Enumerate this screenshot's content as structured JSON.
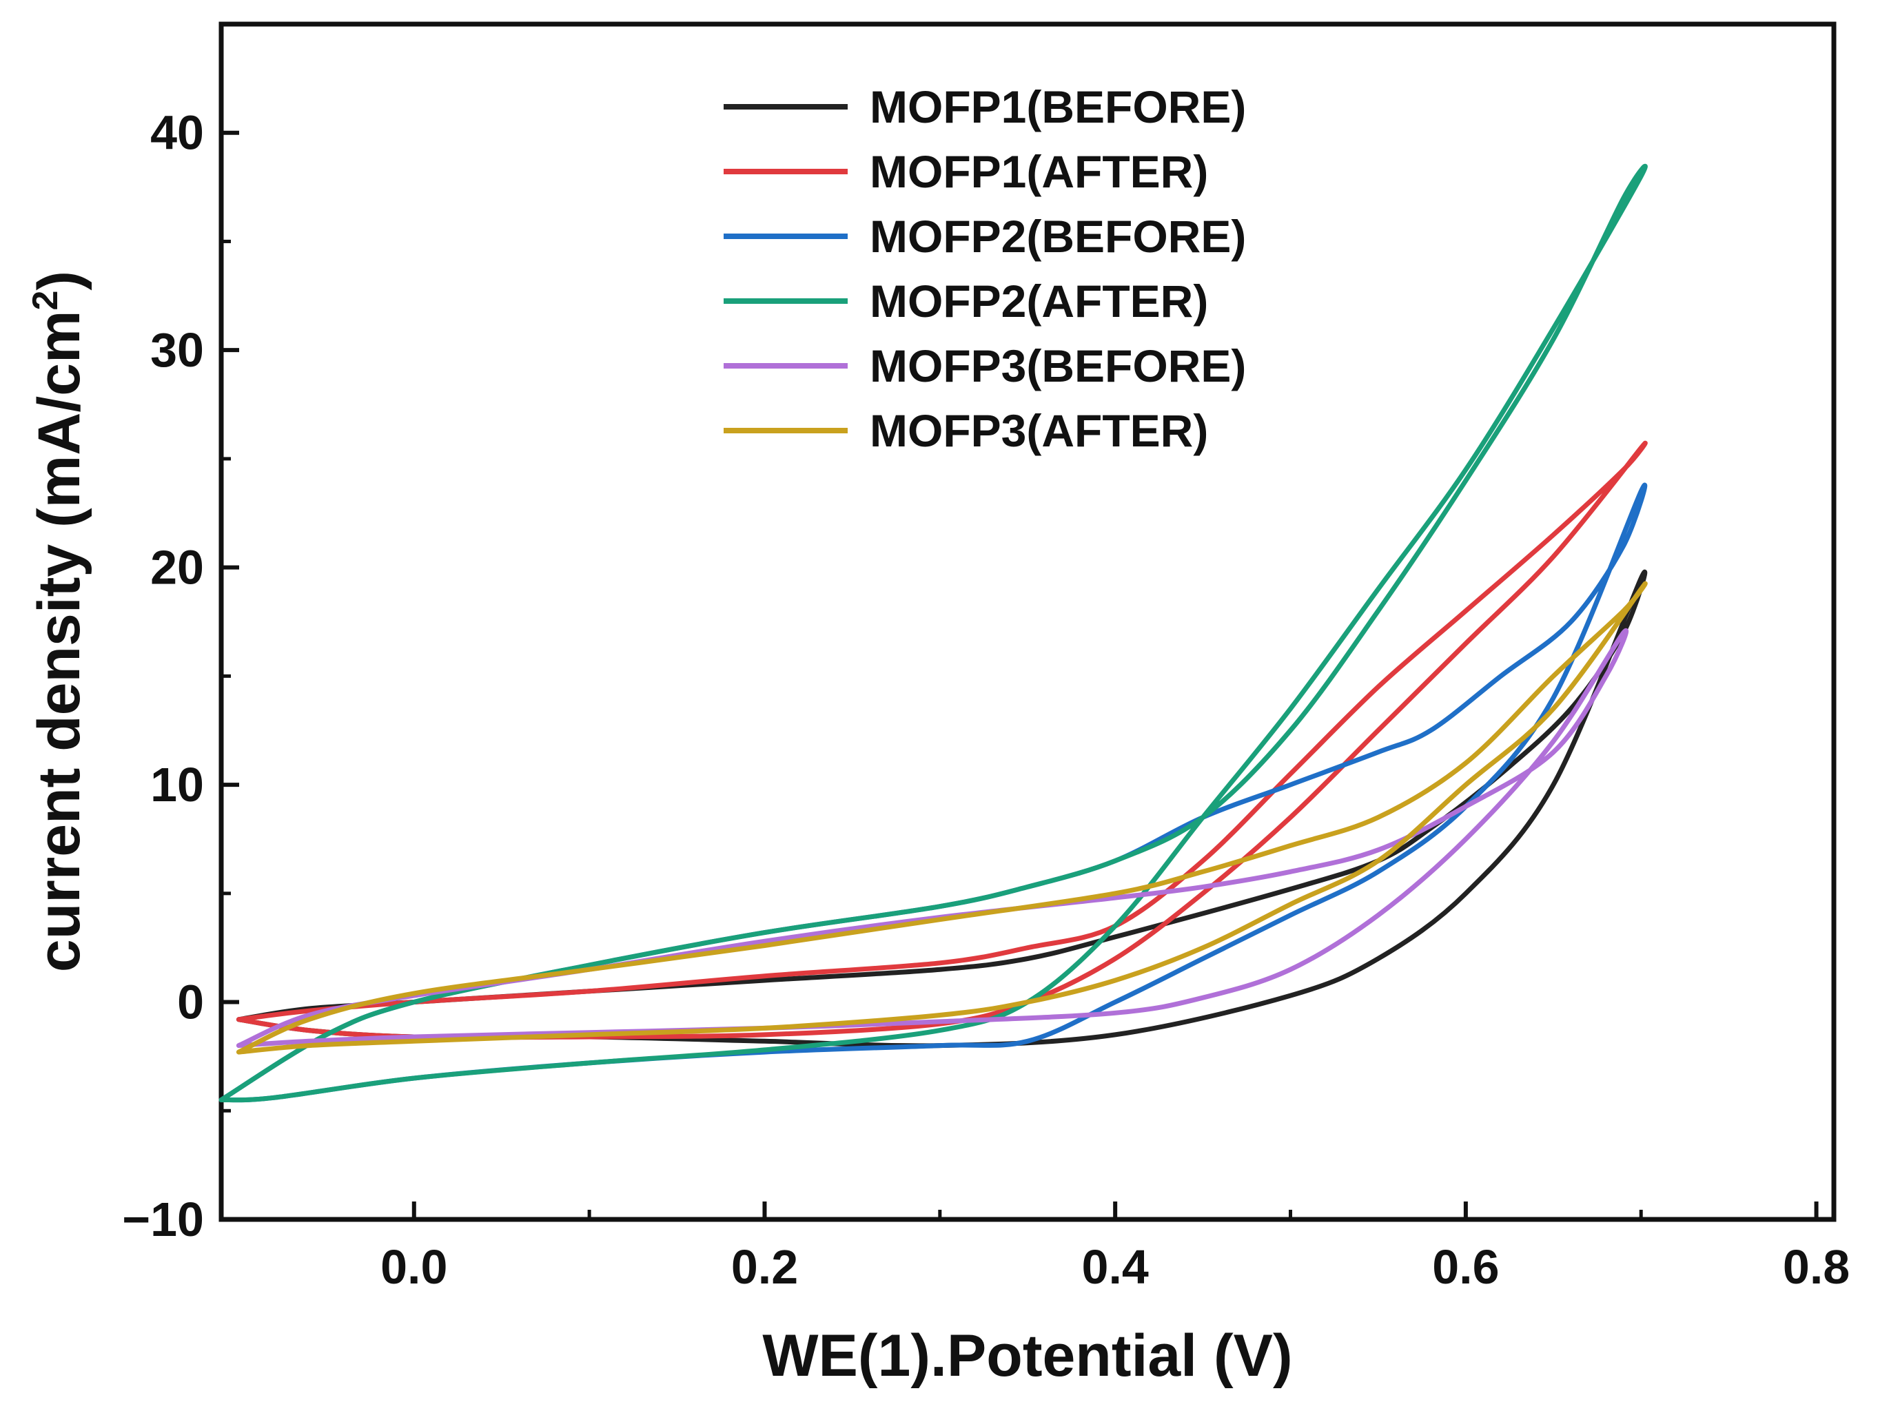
{
  "chart_data": {
    "type": "line",
    "title": "",
    "xlabel": "WE(1).Potential (V)",
    "ylabel_main": "current density (mA/cm",
    "ylabel_sup": "2",
    "ylabel_close": ")",
    "xlim": [
      -0.11,
      0.81
    ],
    "ylim": [
      -10,
      45
    ],
    "xticks": [
      0.0,
      0.2,
      0.4,
      0.6,
      0.8
    ],
    "xtick_labels": [
      "0.0",
      "0.2",
      "0.4",
      "0.6",
      "0.8"
    ],
    "yticks": [
      -10,
      0,
      10,
      20,
      30,
      40
    ],
    "ytick_labels": [
      "−10",
      "0",
      "10",
      "20",
      "30",
      "40"
    ],
    "grid": false,
    "legend_position": "top-center",
    "series": [
      {
        "name": "MOFP1(BEFORE)",
        "color": "#222222",
        "x": [
          -0.1,
          -0.06,
          0.0,
          0.1,
          0.2,
          0.3,
          0.4,
          0.5,
          0.55,
          0.6,
          0.65,
          0.7,
          0.69,
          0.66,
          0.62,
          0.58,
          0.55,
          0.5,
          0.4,
          0.35,
          0.3,
          0.2,
          0.1,
          0.0,
          -0.06,
          -0.1
        ],
        "y": [
          -0.8,
          -1.3,
          -1.6,
          -1.6,
          -1.8,
          -2.0,
          -1.5,
          0.3,
          2.0,
          5.0,
          10.0,
          19.5,
          17.0,
          13.5,
          10.5,
          8.0,
          6.5,
          5.2,
          3.0,
          2.0,
          1.5,
          1.0,
          0.5,
          0.0,
          -0.3,
          -0.8
        ]
      },
      {
        "name": "MOFP1(AFTER)",
        "color": "#e03a3e",
        "x": [
          -0.1,
          -0.06,
          0.0,
          0.1,
          0.2,
          0.3,
          0.35,
          0.4,
          0.45,
          0.5,
          0.55,
          0.6,
          0.65,
          0.7,
          0.69,
          0.65,
          0.6,
          0.55,
          0.5,
          0.45,
          0.4,
          0.35,
          0.3,
          0.2,
          0.1,
          0.0,
          -0.06,
          -0.1
        ],
        "y": [
          -0.8,
          -1.3,
          -1.6,
          -1.6,
          -1.5,
          -1.0,
          0.0,
          2.0,
          5.0,
          8.5,
          12.5,
          16.5,
          20.5,
          25.5,
          24.5,
          21.5,
          18.0,
          14.5,
          10.5,
          6.5,
          3.5,
          2.5,
          1.8,
          1.2,
          0.5,
          0.0,
          -0.4,
          -0.8
        ]
      },
      {
        "name": "MOFP2(BEFORE)",
        "color": "#1f6fc7",
        "x": [
          -0.11,
          -0.08,
          0.0,
          0.1,
          0.2,
          0.3,
          0.35,
          0.4,
          0.45,
          0.5,
          0.55,
          0.6,
          0.65,
          0.7,
          0.69,
          0.66,
          0.62,
          0.58,
          0.55,
          0.5,
          0.45,
          0.4,
          0.35,
          0.3,
          0.2,
          0.1,
          0.0,
          -0.05,
          -0.11
        ],
        "y": [
          -4.5,
          -4.4,
          -3.5,
          -2.8,
          -2.3,
          -2.0,
          -1.8,
          0.0,
          2.0,
          4.0,
          6.0,
          9.0,
          14.0,
          23.5,
          21.0,
          17.5,
          15.0,
          12.5,
          11.5,
          10.0,
          8.5,
          6.5,
          5.3,
          4.4,
          3.2,
          1.7,
          0.0,
          -1.5,
          -4.5
        ]
      },
      {
        "name": "MOFP2(AFTER)",
        "color": "#1aa07a",
        "x": [
          -0.11,
          -0.08,
          0.0,
          0.1,
          0.2,
          0.3,
          0.35,
          0.4,
          0.45,
          0.5,
          0.55,
          0.6,
          0.65,
          0.7,
          0.69,
          0.65,
          0.6,
          0.55,
          0.5,
          0.45,
          0.4,
          0.35,
          0.3,
          0.2,
          0.1,
          0.0,
          -0.05,
          -0.11
        ],
        "y": [
          -4.5,
          -4.4,
          -3.5,
          -2.8,
          -2.2,
          -1.3,
          0.0,
          3.5,
          8.5,
          13.5,
          19.0,
          24.5,
          31.0,
          38.0,
          37.0,
          30.5,
          24.0,
          18.0,
          12.5,
          8.5,
          6.5,
          5.3,
          4.4,
          3.2,
          1.7,
          0.0,
          -1.5,
          -4.5
        ]
      },
      {
        "name": "MOFP3(BEFORE)",
        "color": "#b070d8",
        "x": [
          -0.1,
          -0.06,
          0.0,
          0.1,
          0.2,
          0.3,
          0.4,
          0.45,
          0.5,
          0.55,
          0.6,
          0.65,
          0.69,
          0.68,
          0.65,
          0.6,
          0.55,
          0.5,
          0.45,
          0.4,
          0.3,
          0.2,
          0.1,
          0.0,
          -0.06,
          -0.1
        ],
        "y": [
          -2.0,
          -1.8,
          -1.6,
          -1.4,
          -1.2,
          -0.9,
          -0.5,
          0.2,
          1.5,
          4.0,
          7.5,
          12.0,
          17.0,
          15.0,
          11.5,
          9.0,
          7.0,
          6.0,
          5.3,
          4.8,
          3.9,
          2.8,
          1.5,
          0.3,
          -0.6,
          -2.0
        ]
      },
      {
        "name": "MOFP3(AFTER)",
        "color": "#c9a11e",
        "x": [
          -0.1,
          -0.06,
          0.0,
          0.1,
          0.2,
          0.3,
          0.35,
          0.4,
          0.45,
          0.5,
          0.55,
          0.6,
          0.65,
          0.7,
          0.69,
          0.65,
          0.6,
          0.55,
          0.5,
          0.45,
          0.4,
          0.3,
          0.2,
          0.1,
          0.0,
          -0.06,
          -0.1
        ],
        "y": [
          -2.3,
          -2.0,
          -1.8,
          -1.5,
          -1.2,
          -0.6,
          0.0,
          1.0,
          2.5,
          4.5,
          6.5,
          10.0,
          13.5,
          19.0,
          18.0,
          15.0,
          11.0,
          8.5,
          7.2,
          6.0,
          5.0,
          3.8,
          2.6,
          1.5,
          0.4,
          -0.8,
          -2.3
        ]
      }
    ]
  }
}
